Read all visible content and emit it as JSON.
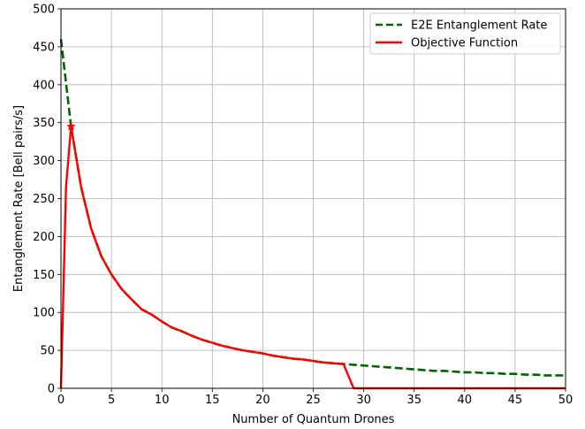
{
  "chart_data": {
    "type": "line",
    "xlabel": "Number of Quantum Drones",
    "ylabel": "Entanglement Rate [Bell pairs/s]",
    "xlim": [
      0,
      50
    ],
    "ylim": [
      0,
      500
    ],
    "xticks": [
      0,
      5,
      10,
      15,
      20,
      25,
      30,
      35,
      40,
      45,
      50
    ],
    "yticks": [
      0,
      50,
      100,
      150,
      200,
      250,
      300,
      350,
      400,
      450,
      500
    ],
    "grid": true,
    "legend_position": "top-right",
    "series": [
      {
        "name": "E2E Entanglement Rate",
        "color": "#006400",
        "style": "dashed",
        "x": [
          0,
          1,
          2,
          3,
          4,
          5,
          6,
          7,
          8,
          9,
          10,
          11,
          12,
          13,
          14,
          15,
          16,
          17,
          18,
          19,
          20,
          21,
          22,
          23,
          24,
          25,
          26,
          27,
          28,
          29,
          30,
          31,
          32,
          33,
          34,
          35,
          36,
          37,
          38,
          39,
          40,
          41,
          42,
          43,
          44,
          45,
          46,
          47,
          48,
          49,
          50
        ],
        "y": [
          460,
          345,
          265,
          210,
          174,
          150,
          131,
          117,
          104,
          97,
          88,
          80,
          75,
          69,
          64,
          60,
          56,
          53,
          50,
          48,
          46,
          43,
          41,
          39,
          38,
          36,
          34,
          33,
          32,
          31,
          30,
          29,
          28,
          27,
          26,
          25,
          24,
          23,
          23,
          22,
          21,
          21,
          20,
          20,
          19,
          19,
          18,
          18,
          17,
          17,
          17
        ]
      },
      {
        "name": "Objective Function",
        "color": "#ff0000",
        "style": "solid",
        "x": [
          0,
          0.5,
          1,
          2,
          3,
          4,
          5,
          6,
          7,
          8,
          9,
          10,
          11,
          12,
          13,
          14,
          15,
          16,
          17,
          18,
          19,
          20,
          21,
          22,
          23,
          24,
          25,
          26,
          27,
          28,
          29,
          30,
          35,
          40,
          45,
          50
        ],
        "y": [
          0,
          265,
          345,
          265,
          210,
          174,
          150,
          131,
          117,
          104,
          97,
          88,
          80,
          75,
          69,
          64,
          60,
          56,
          53,
          50,
          48,
          46,
          43,
          41,
          39,
          38,
          36,
          34,
          33,
          32,
          0,
          0,
          0,
          0,
          0,
          0
        ]
      }
    ],
    "annotations": [
      {
        "type": "star-marker",
        "x": 1,
        "y": 345,
        "color": "#ff0000"
      }
    ]
  }
}
